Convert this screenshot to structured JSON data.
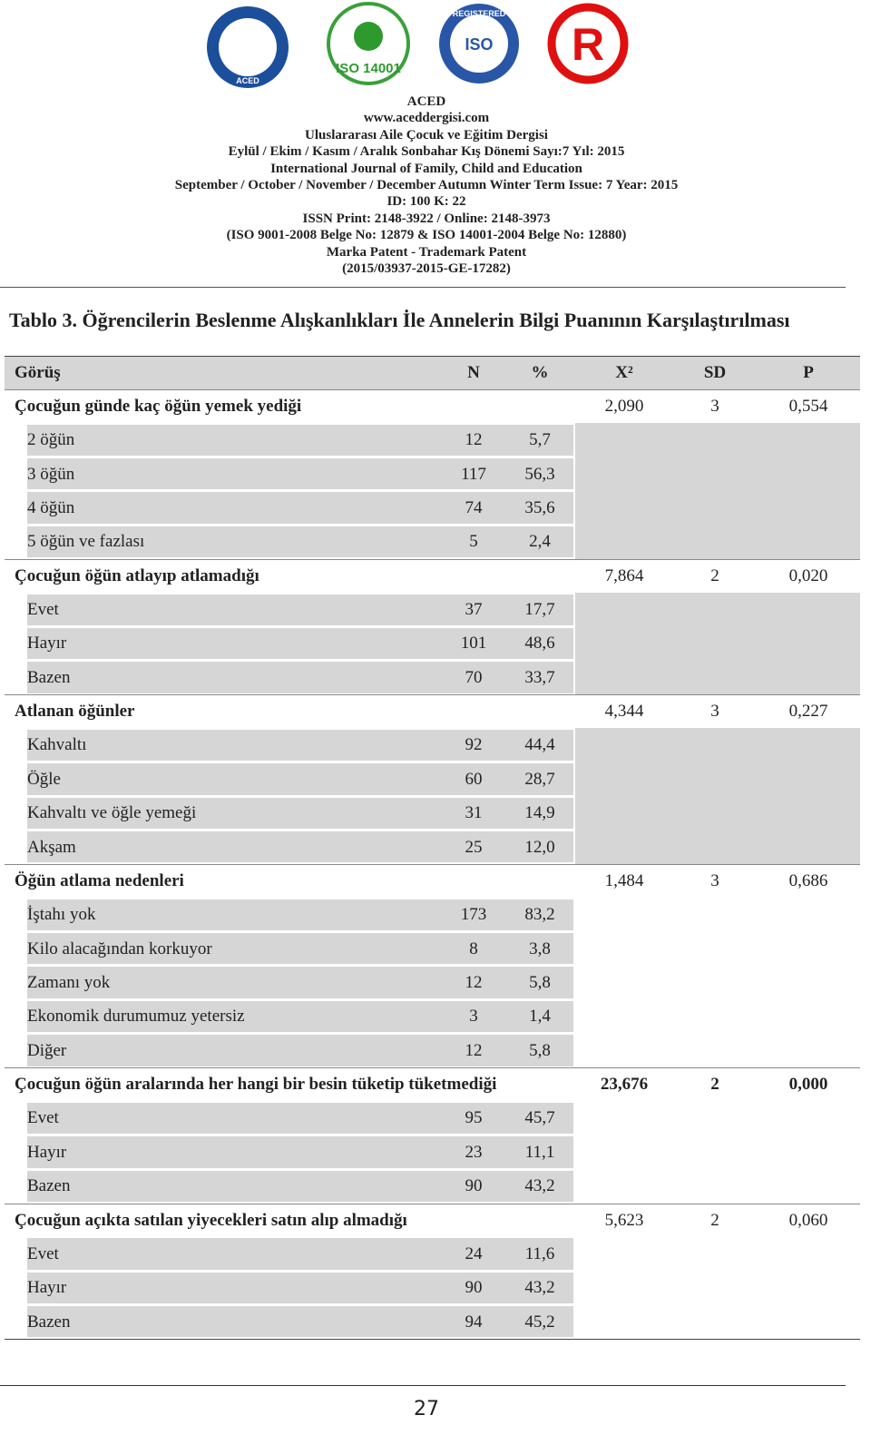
{
  "logos": [
    "ACED",
    "ISO 14001",
    "REGISTERED",
    "ISO",
    "R"
  ],
  "header": {
    "lines": [
      "ACED",
      "www.aceddergisi.com",
      "Uluslararası Aile Çocuk ve Eğitim Dergisi",
      "Eylül / Ekim / Kasım / Aralık Sonbahar Kış Dönemi Sayı:7 Yıl: 2015",
      "International Journal of Family, Child and Education",
      "September / October / November / December Autumn Winter Term Issue: 7 Year: 2015",
      "ID: 100  K: 22",
      "ISSN Print: 2148-3922 / Online: 2148-3973",
      "(ISO 9001-2008 Belge No: 12879 & ISO 14001-2004 Belge No: 12880)",
      "Marka Patent - Trademark Patent",
      "(2015/03937-2015-GE-17282)"
    ]
  },
  "table": {
    "title": "Tablo 3. Öğrencilerin Beslenme Alışkanlıkları İle Annelerin Bilgi Puanının Karşılaştırılması",
    "columns": [
      "Görüş",
      "N",
      "%",
      "X²",
      "SD",
      "P"
    ],
    "groups": [
      {
        "label": "Çocuğun günde kaç öğün yemek yediği",
        "x2": "2,090",
        "sd": "3",
        "p": "0,554",
        "rows": [
          [
            "2 öğün",
            "12",
            "5,7"
          ],
          [
            "3 öğün",
            "117",
            "56,3"
          ],
          [
            "4 öğün",
            "74",
            "35,6"
          ],
          [
            "5 öğün ve fazlası",
            "5",
            "2,4"
          ]
        ]
      },
      {
        "label": "Çocuğun öğün atlayıp atlamadığı",
        "x2": "7,864",
        "sd": "2",
        "p": "0,020",
        "rows": [
          [
            "Evet",
            "37",
            "17,7"
          ],
          [
            "Hayır",
            "101",
            "48,6"
          ],
          [
            "Bazen",
            "70",
            "33,7"
          ]
        ]
      },
      {
        "label": "Atlanan öğünler",
        "x2": "4,344",
        "sd": "3",
        "p": "0,227",
        "rows": [
          [
            "Kahvaltı",
            "92",
            "44,4"
          ],
          [
            "Öğle",
            "60",
            "28,7"
          ],
          [
            "Kahvaltı ve öğle yemeği",
            "31",
            "14,9"
          ],
          [
            "Akşam",
            "25",
            "12,0"
          ]
        ]
      },
      {
        "label": "Öğün atlama nedenleri",
        "x2": "1,484",
        "sd": "3",
        "p": "0,686",
        "rows": [
          [
            "İştahı yok",
            "173",
            "83,2"
          ],
          [
            "Kilo alacağından korkuyor",
            "8",
            "3,8"
          ],
          [
            "Zamanı yok",
            "12",
            "5,8"
          ],
          [
            "Ekonomik durumumuz yetersiz",
            "3",
            "1,4"
          ],
          [
            "Diğer",
            "12",
            "5,8"
          ]
        ]
      },
      {
        "label": "Çocuğun öğün aralarında her hangi bir besin tüketip tüketmediği",
        "x2": "23,676",
        "sd": "2",
        "p": "0,000",
        "rows": [
          [
            "Evet",
            "95",
            "45,7"
          ],
          [
            "Hayır",
            "23",
            "11,1"
          ],
          [
            "Bazen",
            "90",
            "43,2"
          ]
        ]
      },
      {
        "label": "Çocuğun açıkta satılan yiyecekleri satın alıp almadığı",
        "x2": "5,623",
        "sd": "2",
        "p": "0,060",
        "rows": [
          [
            "Evet",
            "24",
            "11,6"
          ],
          [
            "Hayır",
            "90",
            "43,2"
          ],
          [
            "Bazen",
            "94",
            "45,2"
          ]
        ]
      }
    ]
  },
  "page_number": "27"
}
